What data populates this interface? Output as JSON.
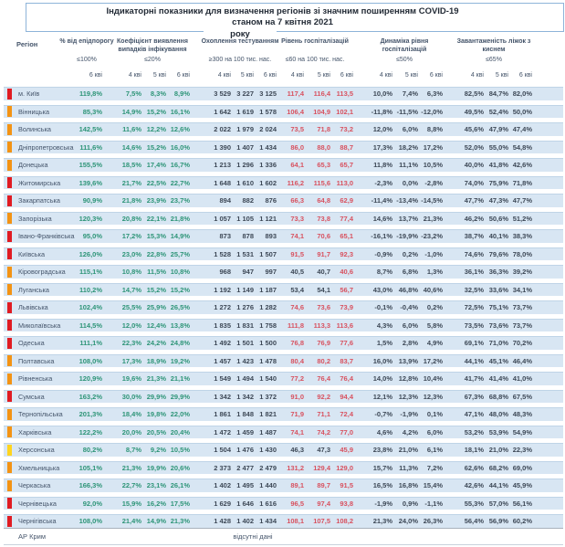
{
  "title": {
    "line1": "Індикаторні показники для визначення регіонів зі значним поширенням COVID-19",
    "line2": "станом на 7 квітня 2021",
    "line2_wrap": "року"
  },
  "header": {
    "region_label": "Регіон"
  },
  "footer": {
    "region": "АР Крим",
    "note": "відсутні дані"
  },
  "colors": {
    "marker_red": "#e01b22",
    "marker_orange": "#f39314",
    "marker_yellow": "#ffd41f",
    "value_green": "#2e9578",
    "value_red": "#d85260",
    "value_dark": "#3d4856",
    "row_band": "#d8e6f3",
    "title_border": "#8eb4d9"
  },
  "chart_data": {
    "type": "table",
    "title": "Індикаторні показники для визначення регіонів зі значним поширенням COVID-19 станом на 7 квітня 2021 року",
    "column_groups": [
      {
        "label": "% від епідпорогу",
        "threshold": "≤100%",
        "dates": [
          "6 кві"
        ]
      },
      {
        "label": "Коефіцієнт виявлення випадків інфікування",
        "threshold": "≤20%",
        "dates": [
          "4 кві",
          "5 кві",
          "6 кві"
        ]
      },
      {
        "label": "Охоплення тестуванням",
        "threshold": "≥300 на 100 тис. нас.",
        "dates": [
          "4 кві",
          "5 кві",
          "6 кві"
        ]
      },
      {
        "label": "Рівень госпіталізацій",
        "threshold": "≤60 на 100 тис. нас.",
        "dates": [
          "4 кві",
          "5 кві",
          "6 кві"
        ]
      },
      {
        "label": "Динаміка рівня госпіталізацій",
        "threshold": "≤50%",
        "dates": [
          "4 кві",
          "5 кві",
          "6 кві"
        ]
      },
      {
        "label": "Завантаженість ліжок з киснем",
        "threshold": "≤65%",
        "dates": [
          "4 кві",
          "5 кві",
          "6 кві"
        ]
      }
    ],
    "rows": [
      {
        "region": "м. Київ",
        "marker": "red",
        "epid_pct": "119,8%",
        "detection_coef": [
          "7,5%",
          "8,3%",
          "8,9%"
        ],
        "testing_coverage": [
          "3 529",
          "3 227",
          "3 125"
        ],
        "hosp_level": [
          "117,4",
          "116,4",
          "113,5"
        ],
        "hosp_dynamics": [
          "10,0%",
          "7,4%",
          "6,3%"
        ],
        "oxygen_beds": [
          "82,5%",
          "84,7%",
          "82,0%"
        ]
      },
      {
        "region": "Вінницька",
        "marker": "orange",
        "epid_pct": "85,3%",
        "detection_coef": [
          "14,9%",
          "15,2%",
          "16,1%"
        ],
        "testing_coverage": [
          "1 642",
          "1 619",
          "1 578"
        ],
        "hosp_level": [
          "106,4",
          "104,9",
          "102,1"
        ],
        "hosp_dynamics": [
          "-11,8%",
          "-11,5%",
          "-12,0%"
        ],
        "oxygen_beds": [
          "49,5%",
          "52,4%",
          "50,0%"
        ]
      },
      {
        "region": "Волинська",
        "marker": "orange",
        "epid_pct": "142,5%",
        "detection_coef": [
          "11,6%",
          "12,2%",
          "12,6%"
        ],
        "testing_coverage": [
          "2 022",
          "1 979",
          "2 024"
        ],
        "hosp_level": [
          "73,5",
          "71,8",
          "73,2"
        ],
        "hosp_dynamics": [
          "12,0%",
          "6,0%",
          "8,8%"
        ],
        "oxygen_beds": [
          "45,6%",
          "47,9%",
          "47,4%"
        ]
      },
      {
        "region": "Дніпропетровська",
        "marker": "orange",
        "epid_pct": "111,6%",
        "detection_coef": [
          "14,6%",
          "15,2%",
          "16,0%"
        ],
        "testing_coverage": [
          "1 390",
          "1 407",
          "1 434"
        ],
        "hosp_level": [
          "86,0",
          "88,0",
          "88,7"
        ],
        "hosp_dynamics": [
          "17,3%",
          "18,2%",
          "17,2%"
        ],
        "oxygen_beds": [
          "52,0%",
          "55,0%",
          "54,8%"
        ]
      },
      {
        "region": "Донецька",
        "marker": "orange",
        "epid_pct": "155,5%",
        "detection_coef": [
          "18,5%",
          "17,4%",
          "16,7%"
        ],
        "testing_coverage": [
          "1 213",
          "1 296",
          "1 336"
        ],
        "hosp_level": [
          "64,1",
          "65,3",
          "65,7"
        ],
        "hosp_dynamics": [
          "11,8%",
          "11,1%",
          "10,5%"
        ],
        "oxygen_beds": [
          "40,0%",
          "41,8%",
          "42,6%"
        ]
      },
      {
        "region": "Житомирська",
        "marker": "red",
        "epid_pct": "139,6%",
        "detection_coef": [
          "21,7%",
          "22,5%",
          "22,7%"
        ],
        "testing_coverage": [
          "1 648",
          "1 610",
          "1 602"
        ],
        "hosp_level": [
          "116,2",
          "115,6",
          "113,0"
        ],
        "hosp_dynamics": [
          "-2,3%",
          "0,0%",
          "-2,8%"
        ],
        "oxygen_beds": [
          "74,0%",
          "75,9%",
          "71,8%"
        ]
      },
      {
        "region": "Закарпатська",
        "marker": "red",
        "epid_pct": "90,9%",
        "detection_coef": [
          "21,8%",
          "23,9%",
          "23,7%"
        ],
        "testing_coverage": [
          "894",
          "882",
          "876"
        ],
        "hosp_level": [
          "66,3",
          "64,8",
          "62,9"
        ],
        "hosp_dynamics": [
          "-11,4%",
          "-13,4%",
          "-14,5%"
        ],
        "oxygen_beds": [
          "47,7%",
          "47,3%",
          "47,7%"
        ]
      },
      {
        "region": "Запорізька",
        "marker": "orange",
        "epid_pct": "120,3%",
        "detection_coef": [
          "20,8%",
          "22,1%",
          "21,8%"
        ],
        "testing_coverage": [
          "1 057",
          "1 105",
          "1 121"
        ],
        "hosp_level": [
          "73,3",
          "73,8",
          "77,4"
        ],
        "hosp_dynamics": [
          "14,6%",
          "13,7%",
          "21,3%"
        ],
        "oxygen_beds": [
          "46,2%",
          "50,6%",
          "51,2%"
        ]
      },
      {
        "region": "Івано-Франківська",
        "marker": "red",
        "epid_pct": "95,0%",
        "detection_coef": [
          "17,2%",
          "15,3%",
          "14,9%"
        ],
        "testing_coverage": [
          "873",
          "878",
          "893"
        ],
        "hosp_level": [
          "74,1",
          "70,6",
          "65,1"
        ],
        "hosp_dynamics": [
          "-16,1%",
          "-19,9%",
          "-23,2%"
        ],
        "oxygen_beds": [
          "38,7%",
          "40,1%",
          "38,3%"
        ]
      },
      {
        "region": "Київська",
        "marker": "red",
        "epid_pct": "126,0%",
        "detection_coef": [
          "23,0%",
          "22,8%",
          "25,7%"
        ],
        "testing_coverage": [
          "1 528",
          "1 531",
          "1 507"
        ],
        "hosp_level": [
          "91,5",
          "91,7",
          "92,3"
        ],
        "hosp_dynamics": [
          "-0,9%",
          "0,2%",
          "-1,0%"
        ],
        "oxygen_beds": [
          "74,6%",
          "79,6%",
          "78,0%"
        ]
      },
      {
        "region": "Кіровоградська",
        "marker": "orange",
        "epid_pct": "115,1%",
        "detection_coef": [
          "10,8%",
          "11,5%",
          "10,8%"
        ],
        "testing_coverage": [
          "968",
          "947",
          "997"
        ],
        "hosp_level": [
          "40,5",
          "40,7",
          "40,6"
        ],
        "hosp_dynamics": [
          "8,7%",
          "6,8%",
          "1,3%"
        ],
        "oxygen_beds": [
          "36,1%",
          "36,3%",
          "39,2%"
        ]
      },
      {
        "region": "Луганська",
        "marker": "orange",
        "epid_pct": "110,2%",
        "detection_coef": [
          "14,7%",
          "15,2%",
          "15,2%"
        ],
        "testing_coverage": [
          "1 192",
          "1 149",
          "1 187"
        ],
        "hosp_level": [
          "53,4",
          "54,1",
          "56,7"
        ],
        "hosp_dynamics": [
          "43,0%",
          "46,8%",
          "40,6%"
        ],
        "oxygen_beds": [
          "32,5%",
          "33,6%",
          "34,1%"
        ]
      },
      {
        "region": "Львівська",
        "marker": "red",
        "epid_pct": "102,4%",
        "detection_coef": [
          "25,5%",
          "25,9%",
          "26,5%"
        ],
        "testing_coverage": [
          "1 272",
          "1 276",
          "1 282"
        ],
        "hosp_level": [
          "74,6",
          "73,6",
          "73,9"
        ],
        "hosp_dynamics": [
          "-0,1%",
          "-0,4%",
          "0,2%"
        ],
        "oxygen_beds": [
          "72,5%",
          "75,1%",
          "73,7%"
        ]
      },
      {
        "region": "Миколаївська",
        "marker": "red",
        "epid_pct": "114,5%",
        "detection_coef": [
          "12,0%",
          "12,4%",
          "13,8%"
        ],
        "testing_coverage": [
          "1 835",
          "1 831",
          "1 758"
        ],
        "hosp_level": [
          "111,8",
          "113,3",
          "113,6"
        ],
        "hosp_dynamics": [
          "4,3%",
          "6,0%",
          "5,8%"
        ],
        "oxygen_beds": [
          "73,5%",
          "73,6%",
          "73,7%"
        ]
      },
      {
        "region": "Одеська",
        "marker": "red",
        "epid_pct": "111,1%",
        "detection_coef": [
          "22,3%",
          "24,2%",
          "24,8%"
        ],
        "testing_coverage": [
          "1 492",
          "1 501",
          "1 500"
        ],
        "hosp_level": [
          "76,8",
          "76,9",
          "77,6"
        ],
        "hosp_dynamics": [
          "1,5%",
          "2,8%",
          "4,9%"
        ],
        "oxygen_beds": [
          "69,1%",
          "71,0%",
          "70,2%"
        ]
      },
      {
        "region": "Полтавська",
        "marker": "orange",
        "epid_pct": "108,0%",
        "detection_coef": [
          "17,3%",
          "18,9%",
          "19,2%"
        ],
        "testing_coverage": [
          "1 457",
          "1 423",
          "1 478"
        ],
        "hosp_level": [
          "80,4",
          "80,2",
          "83,7"
        ],
        "hosp_dynamics": [
          "16,0%",
          "13,9%",
          "17,2%"
        ],
        "oxygen_beds": [
          "44,1%",
          "45,1%",
          "46,4%"
        ]
      },
      {
        "region": "Рівненська",
        "marker": "orange",
        "epid_pct": "120,9%",
        "detection_coef": [
          "19,6%",
          "21,3%",
          "21,1%"
        ],
        "testing_coverage": [
          "1 549",
          "1 494",
          "1 540"
        ],
        "hosp_level": [
          "77,2",
          "76,4",
          "76,4"
        ],
        "hosp_dynamics": [
          "14,0%",
          "12,8%",
          "10,4%"
        ],
        "oxygen_beds": [
          "41,7%",
          "41,4%",
          "41,0%"
        ]
      },
      {
        "region": "Сумська",
        "marker": "red",
        "epid_pct": "163,2%",
        "detection_coef": [
          "30,0%",
          "29,9%",
          "29,9%"
        ],
        "testing_coverage": [
          "1 342",
          "1 342",
          "1 372"
        ],
        "hosp_level": [
          "91,0",
          "92,2",
          "94,4"
        ],
        "hosp_dynamics": [
          "12,1%",
          "12,3%",
          "12,3%"
        ],
        "oxygen_beds": [
          "67,3%",
          "68,8%",
          "67,5%"
        ]
      },
      {
        "region": "Тернопільська",
        "marker": "orange",
        "epid_pct": "201,3%",
        "detection_coef": [
          "18,4%",
          "19,8%",
          "22,0%"
        ],
        "testing_coverage": [
          "1 861",
          "1 848",
          "1 821"
        ],
        "hosp_level": [
          "71,9",
          "71,1",
          "72,4"
        ],
        "hosp_dynamics": [
          "-0,7%",
          "-1,9%",
          "0,1%"
        ],
        "oxygen_beds": [
          "47,1%",
          "48,0%",
          "48,3%"
        ]
      },
      {
        "region": "Харківська",
        "marker": "orange",
        "epid_pct": "122,2%",
        "detection_coef": [
          "20,0%",
          "20,5%",
          "20,4%"
        ],
        "testing_coverage": [
          "1 472",
          "1 459",
          "1 487"
        ],
        "hosp_level": [
          "74,1",
          "74,2",
          "77,0"
        ],
        "hosp_dynamics": [
          "4,6%",
          "4,2%",
          "6,0%"
        ],
        "oxygen_beds": [
          "53,2%",
          "53,9%",
          "54,9%"
        ]
      },
      {
        "region": "Херсонська",
        "marker": "yellow",
        "epid_pct": "80,2%",
        "detection_coef": [
          "8,7%",
          "9,2%",
          "10,5%"
        ],
        "testing_coverage": [
          "1 504",
          "1 476",
          "1 430"
        ],
        "hosp_level": [
          "46,3",
          "47,3",
          "45,9"
        ],
        "hosp_dynamics": [
          "23,8%",
          "21,0%",
          "6,1%"
        ],
        "oxygen_beds": [
          "18,1%",
          "21,0%",
          "22,3%"
        ]
      },
      {
        "region": "Хмельницька",
        "marker": "orange",
        "epid_pct": "105,1%",
        "detection_coef": [
          "21,3%",
          "19,9%",
          "20,6%"
        ],
        "testing_coverage": [
          "2 373",
          "2 477",
          "2 479"
        ],
        "hosp_level": [
          "131,2",
          "129,4",
          "129,0"
        ],
        "hosp_dynamics": [
          "15,7%",
          "11,3%",
          "7,2%"
        ],
        "oxygen_beds": [
          "62,6%",
          "68,2%",
          "69,0%"
        ]
      },
      {
        "region": "Черкаська",
        "marker": "orange",
        "epid_pct": "166,3%",
        "detection_coef": [
          "22,7%",
          "23,1%",
          "26,1%"
        ],
        "testing_coverage": [
          "1 402",
          "1 495",
          "1 440"
        ],
        "hosp_level": [
          "89,1",
          "89,7",
          "91,5"
        ],
        "hosp_dynamics": [
          "16,5%",
          "16,8%",
          "15,4%"
        ],
        "oxygen_beds": [
          "42,6%",
          "44,1%",
          "45,9%"
        ]
      },
      {
        "region": "Чернівецька",
        "marker": "red",
        "epid_pct": "92,0%",
        "detection_coef": [
          "15,9%",
          "16,2%",
          "17,5%"
        ],
        "testing_coverage": [
          "1 629",
          "1 646",
          "1 616"
        ],
        "hosp_level": [
          "96,5",
          "97,4",
          "93,8"
        ],
        "hosp_dynamics": [
          "-1,9%",
          "0,9%",
          "-1,1%"
        ],
        "oxygen_beds": [
          "55,3%",
          "57,0%",
          "56,1%"
        ]
      },
      {
        "region": "Чернігівська",
        "marker": "red",
        "epid_pct": "108,0%",
        "detection_coef": [
          "21,4%",
          "14,9%",
          "21,3%"
        ],
        "testing_coverage": [
          "1 428",
          "1 402",
          "1 434"
        ],
        "hosp_level": [
          "108,1",
          "107,5",
          "108,2"
        ],
        "hosp_dynamics": [
          "21,3%",
          "24,0%",
          "26,3%"
        ],
        "oxygen_beds": [
          "56,4%",
          "56,9%",
          "60,2%"
        ]
      }
    ],
    "missing_data_row": {
      "region": "АР Крим",
      "note": "відсутні дані"
    }
  }
}
